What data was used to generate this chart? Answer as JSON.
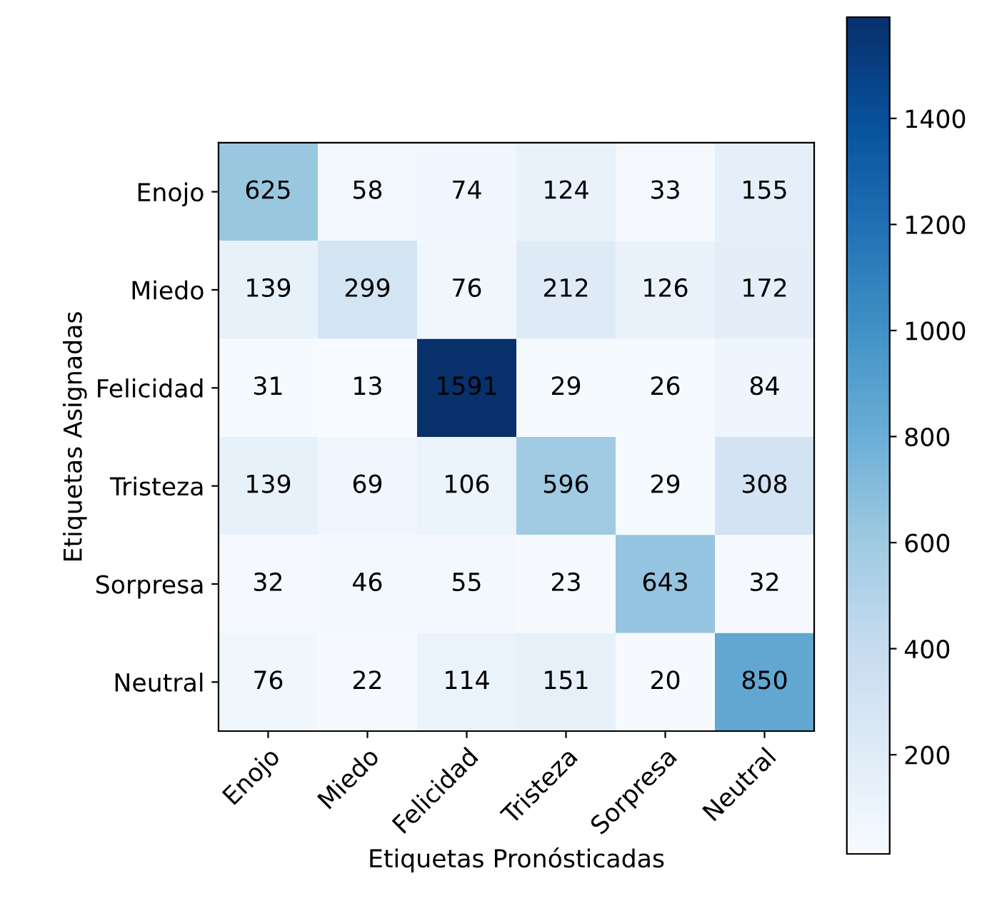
{
  "chart_data": {
    "type": "heatmap",
    "xlabel": "Etiquetas Pronósticadas",
    "ylabel": "Etiquetas Asignadas",
    "categories": [
      "Enojo",
      "Miedo",
      "Felicidad",
      "Tristeza",
      "Sorpresa",
      "Neutral"
    ],
    "y_categories": [
      "Enojo",
      "Miedo",
      "Felicidad",
      "Tristeza",
      "Sorpresa",
      "Neutral"
    ],
    "cells": [
      [
        625,
        58,
        74,
        124,
        33,
        155
      ],
      [
        139,
        299,
        76,
        212,
        126,
        172
      ],
      [
        31,
        13,
        1591,
        29,
        26,
        84
      ],
      [
        139,
        69,
        106,
        596,
        29,
        308
      ],
      [
        32,
        46,
        55,
        23,
        643,
        32
      ],
      [
        76,
        22,
        114,
        151,
        20,
        850
      ]
    ],
    "clim": [
      13,
      1591
    ],
    "cticks": [
      200,
      400,
      600,
      800,
      1000,
      1200,
      1400
    ],
    "data_labels": true,
    "grid": false
  }
}
